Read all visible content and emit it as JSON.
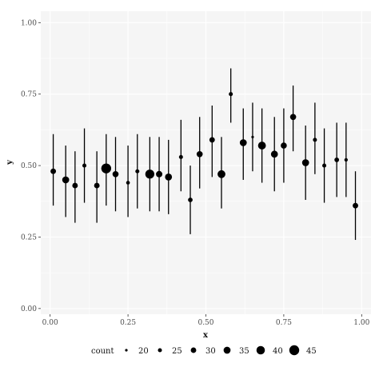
{
  "chart_data": {
    "type": "scatter",
    "xlabel": "x",
    "ylabel": "y",
    "xlim": [
      -0.03,
      1.03
    ],
    "ylim": [
      -0.02,
      1.04
    ],
    "xticks": [
      0,
      0.25,
      0.5,
      0.75,
      1
    ],
    "xtick_labels": [
      "0.00",
      "0.25",
      "0.50",
      "0.75",
      "1.00"
    ],
    "yticks": [
      0,
      0.25,
      0.5,
      0.75,
      1
    ],
    "ytick_labels": [
      "0.00",
      "0.25",
      "0.50",
      "0.75",
      "1.00"
    ],
    "grid": true,
    "legend_position": "bottom",
    "legend_title": "count",
    "legend_values": [
      20,
      25,
      30,
      35,
      40,
      45
    ],
    "size_range": [
      20,
      45
    ],
    "points": [
      {
        "x": 0.01,
        "y": 0.48,
        "ymin": 0.36,
        "ymax": 0.61,
        "count": 30
      },
      {
        "x": 0.05,
        "y": 0.45,
        "ymin": 0.32,
        "ymax": 0.57,
        "count": 35
      },
      {
        "x": 0.08,
        "y": 0.43,
        "ymin": 0.3,
        "ymax": 0.55,
        "count": 30
      },
      {
        "x": 0.11,
        "y": 0.5,
        "ymin": 0.37,
        "ymax": 0.63,
        "count": 25
      },
      {
        "x": 0.15,
        "y": 0.43,
        "ymin": 0.3,
        "ymax": 0.55,
        "count": 30
      },
      {
        "x": 0.18,
        "y": 0.49,
        "ymin": 0.36,
        "ymax": 0.61,
        "count": 45
      },
      {
        "x": 0.21,
        "y": 0.47,
        "ymin": 0.34,
        "ymax": 0.6,
        "count": 32
      },
      {
        "x": 0.25,
        "y": 0.44,
        "ymin": 0.32,
        "ymax": 0.57,
        "count": 24
      },
      {
        "x": 0.28,
        "y": 0.48,
        "ymin": 0.35,
        "ymax": 0.61,
        "count": 25
      },
      {
        "x": 0.32,
        "y": 0.47,
        "ymin": 0.34,
        "ymax": 0.6,
        "count": 42
      },
      {
        "x": 0.35,
        "y": 0.47,
        "ymin": 0.34,
        "ymax": 0.6,
        "count": 33
      },
      {
        "x": 0.38,
        "y": 0.46,
        "ymin": 0.33,
        "ymax": 0.59,
        "count": 35
      },
      {
        "x": 0.42,
        "y": 0.53,
        "ymin": 0.41,
        "ymax": 0.66,
        "count": 25
      },
      {
        "x": 0.45,
        "y": 0.38,
        "ymin": 0.26,
        "ymax": 0.5,
        "count": 27
      },
      {
        "x": 0.48,
        "y": 0.54,
        "ymin": 0.42,
        "ymax": 0.67,
        "count": 32
      },
      {
        "x": 0.52,
        "y": 0.59,
        "ymin": 0.46,
        "ymax": 0.71,
        "count": 30
      },
      {
        "x": 0.55,
        "y": 0.47,
        "ymin": 0.35,
        "ymax": 0.6,
        "count": 38
      },
      {
        "x": 0.58,
        "y": 0.75,
        "ymin": 0.65,
        "ymax": 0.84,
        "count": 25
      },
      {
        "x": 0.62,
        "y": 0.58,
        "ymin": 0.45,
        "ymax": 0.7,
        "count": 35
      },
      {
        "x": 0.65,
        "y": 0.6,
        "ymin": 0.48,
        "ymax": 0.72,
        "count": 20
      },
      {
        "x": 0.68,
        "y": 0.57,
        "ymin": 0.44,
        "ymax": 0.7,
        "count": 38
      },
      {
        "x": 0.72,
        "y": 0.54,
        "ymin": 0.41,
        "ymax": 0.67,
        "count": 35
      },
      {
        "x": 0.75,
        "y": 0.57,
        "ymin": 0.44,
        "ymax": 0.7,
        "count": 32
      },
      {
        "x": 0.78,
        "y": 0.67,
        "ymin": 0.55,
        "ymax": 0.78,
        "count": 32
      },
      {
        "x": 0.82,
        "y": 0.51,
        "ymin": 0.38,
        "ymax": 0.64,
        "count": 35
      },
      {
        "x": 0.85,
        "y": 0.59,
        "ymin": 0.47,
        "ymax": 0.72,
        "count": 25
      },
      {
        "x": 0.88,
        "y": 0.5,
        "ymin": 0.37,
        "ymax": 0.63,
        "count": 25
      },
      {
        "x": 0.92,
        "y": 0.52,
        "ymin": 0.39,
        "ymax": 0.65,
        "count": 27
      },
      {
        "x": 0.95,
        "y": 0.52,
        "ymin": 0.39,
        "ymax": 0.65,
        "count": 23
      },
      {
        "x": 0.98,
        "y": 0.36,
        "ymin": 0.24,
        "ymax": 0.48,
        "count": 30
      }
    ]
  }
}
